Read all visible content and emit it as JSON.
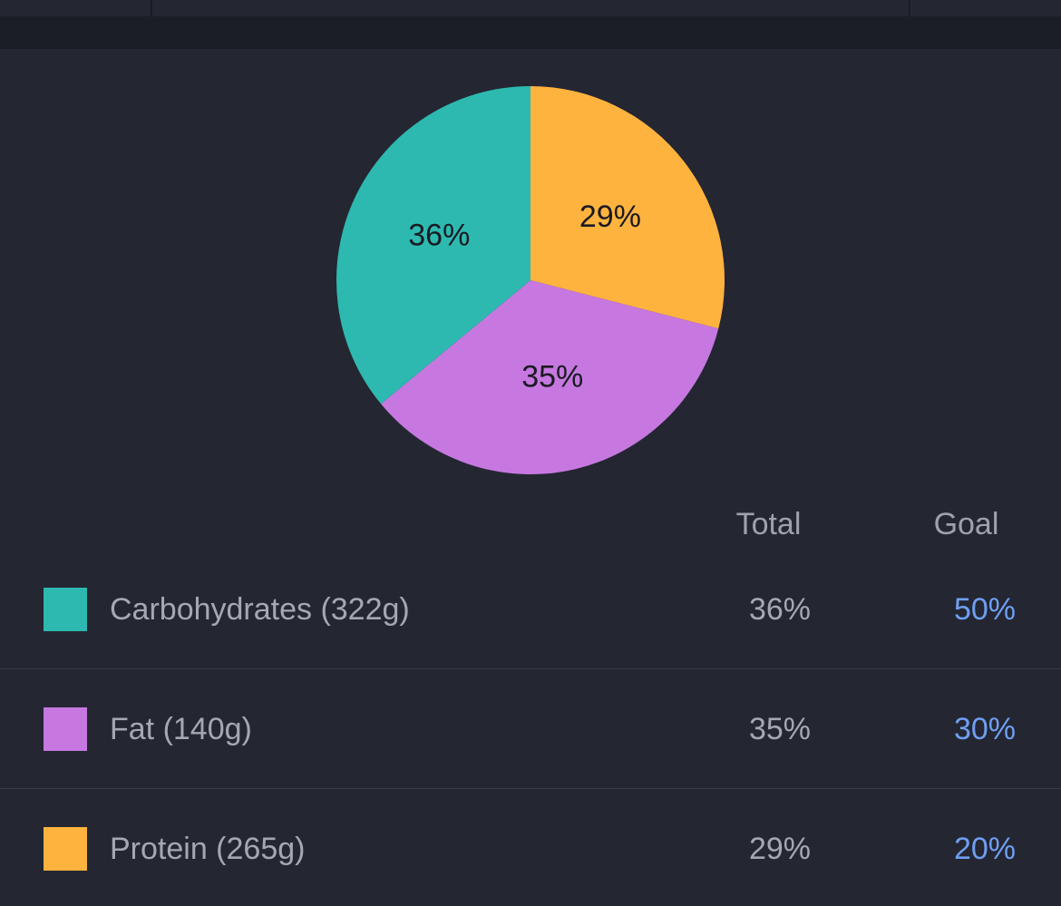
{
  "chart_data": {
    "type": "pie",
    "categories": [
      "Carbohydrates",
      "Fat",
      "Protein"
    ],
    "values": [
      36,
      35,
      29
    ],
    "labels": [
      "36%",
      "35%",
      "29%"
    ],
    "colors": [
      "#2db9b0",
      "#c678e0",
      "#ffb33f"
    ]
  },
  "table": {
    "headers": {
      "total": "Total",
      "goal": "Goal"
    },
    "rows": [
      {
        "label": "Carbohydrates (322g)",
        "total": "36%",
        "goal": "50%",
        "color": "#2db9b0"
      },
      {
        "label": "Fat (140g)",
        "total": "35%",
        "goal": "30%",
        "color": "#c678e0"
      },
      {
        "label": "Protein (265g)",
        "total": "29%",
        "goal": "20%",
        "color": "#ffb33f"
      }
    ]
  }
}
